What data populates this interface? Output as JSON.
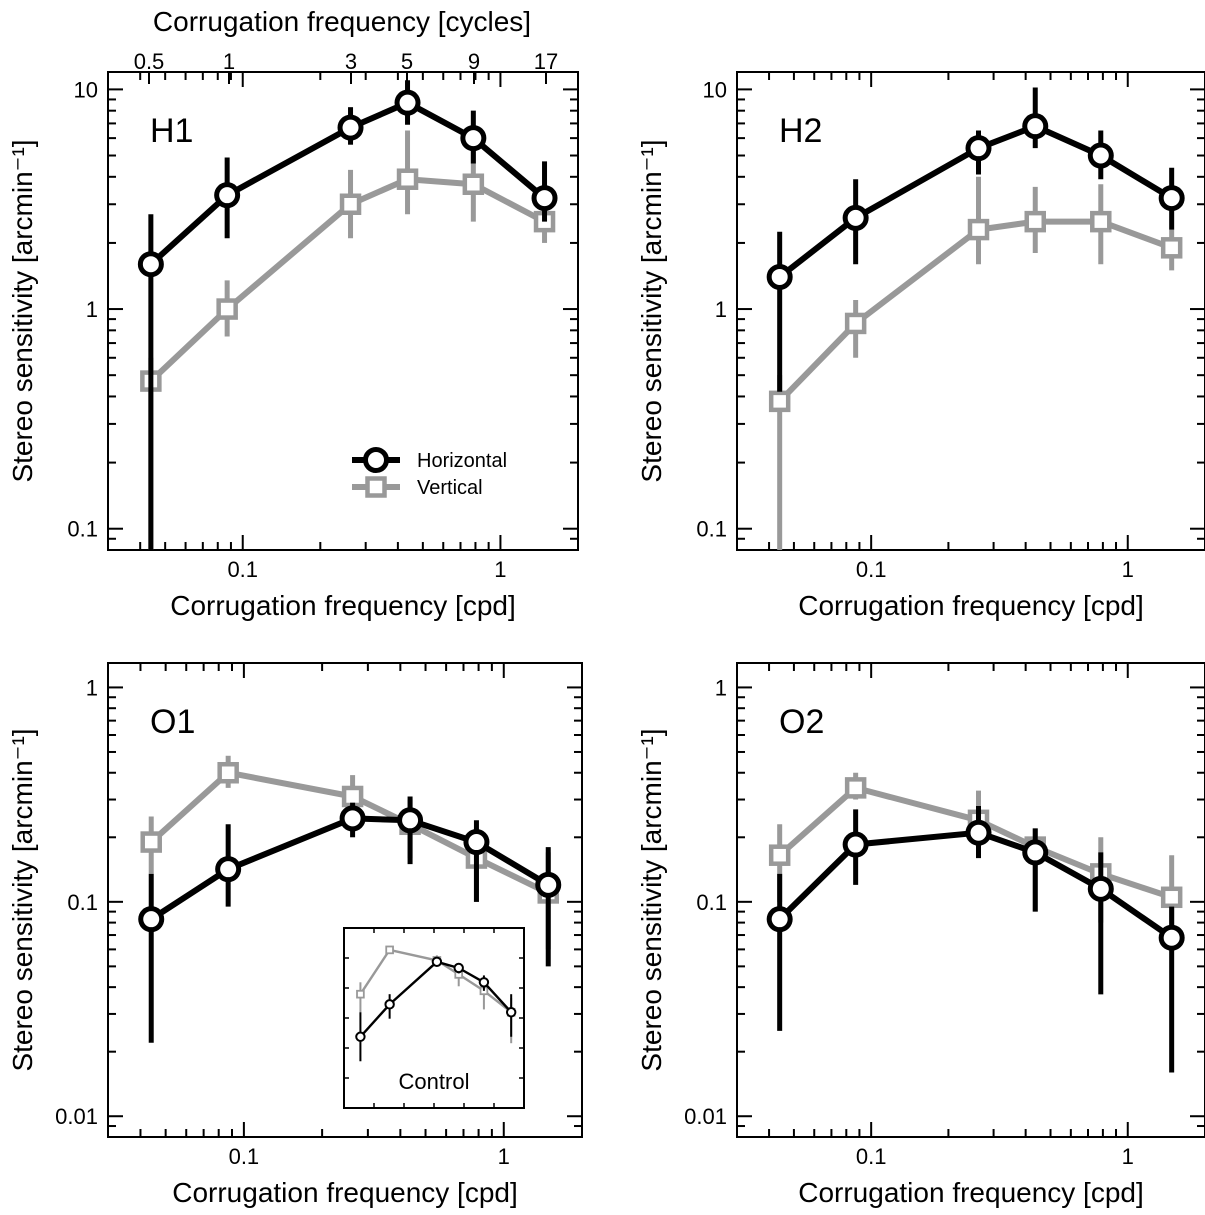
{
  "figure": {
    "top_axis_title": "Corrugation frequency [cycles]",
    "top_tick_labels": [
      "0.5",
      "1",
      "3",
      "5",
      "9",
      "17"
    ]
  },
  "legend": {
    "horizontal": "Horizontal",
    "vertical": "Vertical"
  },
  "inset": {
    "label": "Control"
  },
  "colors": {
    "horizontal": "#000000",
    "vertical": "#999999"
  },
  "chart_data": [
    {
      "type": "line",
      "panel": "H1",
      "xlabel": "Corrugation frequency [cpd]",
      "ylabel": "Stereo sensitivity [arcmin⁻¹]",
      "x_scale": "log",
      "y_scale": "log",
      "xlim": [
        0.03,
        2.0
      ],
      "ylim": [
        0.08,
        12
      ],
      "x_ticks": [
        {
          "v": 0.1,
          "t": "0.1"
        },
        {
          "v": 1,
          "t": "1"
        }
      ],
      "y_ticks": [
        {
          "v": 0.1,
          "t": "0.1"
        },
        {
          "v": 1,
          "t": "1"
        },
        {
          "v": 10,
          "t": "10"
        }
      ],
      "series": [
        {
          "name": "Horizontal",
          "x": [
            0.044,
            0.087,
            0.262,
            0.436,
            0.785,
            1.483
          ],
          "y": [
            1.6,
            3.3,
            6.7,
            8.7,
            6.0,
            3.2
          ],
          "err_low": [
            0.08,
            2.1,
            5.6,
            6.9,
            4.6,
            2.5
          ],
          "err_high": [
            2.7,
            4.9,
            8.3,
            11.0,
            8.0,
            4.7
          ]
        },
        {
          "name": "Vertical",
          "x": [
            0.044,
            0.087,
            0.262,
            0.436,
            0.785,
            1.483
          ],
          "y": [
            0.47,
            1.0,
            3.0,
            3.9,
            3.7,
            2.5
          ],
          "err_low": [
            0.08,
            0.75,
            2.1,
            2.7,
            2.5,
            2.0
          ],
          "err_high": [
            0.6,
            1.35,
            4.3,
            6.5,
            5.3,
            3.0
          ]
        }
      ]
    },
    {
      "type": "line",
      "panel": "H2",
      "xlabel": "Corrugation frequency [cpd]",
      "ylabel": "Stereo sensitivity [arcmin⁻¹]",
      "x_scale": "log",
      "y_scale": "log",
      "xlim": [
        0.03,
        2.0
      ],
      "ylim": [
        0.08,
        12
      ],
      "x_ticks": [
        {
          "v": 0.1,
          "t": "0.1"
        },
        {
          "v": 1,
          "t": "1"
        }
      ],
      "y_ticks": [
        {
          "v": 0.1,
          "t": "0.1"
        },
        {
          "v": 1,
          "t": "1"
        },
        {
          "v": 10,
          "t": "10"
        }
      ],
      "series": [
        {
          "name": "Horizontal",
          "x": [
            0.044,
            0.087,
            0.262,
            0.436,
            0.785,
            1.483
          ],
          "y": [
            1.4,
            2.6,
            5.4,
            6.8,
            5.0,
            3.2
          ],
          "err_low": [
            0.42,
            1.6,
            4.1,
            5.4,
            3.9,
            2.3
          ],
          "err_high": [
            2.25,
            3.9,
            6.5,
            10.2,
            6.5,
            4.4
          ]
        },
        {
          "name": "Vertical",
          "x": [
            0.044,
            0.087,
            0.262,
            0.436,
            0.785,
            1.483
          ],
          "y": [
            0.38,
            0.86,
            2.3,
            2.5,
            2.5,
            1.9
          ],
          "err_low": [
            0.08,
            0.6,
            1.6,
            1.8,
            1.6,
            1.5
          ],
          "err_high": [
            0.5,
            1.1,
            4.0,
            3.6,
            3.7,
            2.3
          ]
        }
      ]
    },
    {
      "type": "line",
      "panel": "O1",
      "xlabel": "Corrugation frequency [cpd]",
      "ylabel": "Stereo sensitivity [arcmin⁻¹]",
      "x_scale": "log",
      "y_scale": "log",
      "xlim": [
        0.03,
        2.0
      ],
      "ylim": [
        0.008,
        1.3
      ],
      "x_ticks": [
        {
          "v": 0.1,
          "t": "0.1"
        },
        {
          "v": 1,
          "t": "1"
        }
      ],
      "y_ticks": [
        {
          "v": 0.01,
          "t": "0.01"
        },
        {
          "v": 0.1,
          "t": "0.1"
        },
        {
          "v": 1,
          "t": "1"
        }
      ],
      "series": [
        {
          "name": "Horizontal",
          "x": [
            0.044,
            0.087,
            0.262,
            0.436,
            0.785,
            1.483
          ],
          "y": [
            0.083,
            0.142,
            0.245,
            0.24,
            0.19,
            0.12
          ],
          "err_low": [
            0.022,
            0.095,
            0.2,
            0.15,
            0.1,
            0.05
          ],
          "err_high": [
            0.135,
            0.23,
            0.29,
            0.31,
            0.24,
            0.18
          ]
        },
        {
          "name": "Vertical",
          "x": [
            0.044,
            0.087,
            0.262,
            0.436,
            0.785,
            1.483
          ],
          "y": [
            0.19,
            0.4,
            0.31,
            0.23,
            0.16,
            0.11
          ],
          "err_low": [
            0.135,
            0.34,
            0.26,
            0.16,
            0.1,
            0.06
          ],
          "err_high": [
            0.25,
            0.48,
            0.39,
            0.3,
            0.22,
            0.17
          ]
        }
      ]
    },
    {
      "type": "line",
      "panel": "O2",
      "xlabel": "Corrugation frequency [cpd]",
      "ylabel": "Stereo sensitivity [arcmin⁻¹]",
      "x_scale": "log",
      "y_scale": "log",
      "xlim": [
        0.03,
        2.0
      ],
      "ylim": [
        0.008,
        1.3
      ],
      "x_ticks": [
        {
          "v": 0.1,
          "t": "0.1"
        },
        {
          "v": 1,
          "t": "1"
        }
      ],
      "y_ticks": [
        {
          "v": 0.01,
          "t": "0.01"
        },
        {
          "v": 0.1,
          "t": "0.1"
        },
        {
          "v": 1,
          "t": "1"
        }
      ],
      "series": [
        {
          "name": "Horizontal",
          "x": [
            0.044,
            0.087,
            0.262,
            0.436,
            0.785,
            1.483
          ],
          "y": [
            0.083,
            0.185,
            0.21,
            0.17,
            0.115,
            0.068
          ],
          "err_low": [
            0.025,
            0.12,
            0.16,
            0.09,
            0.037,
            0.016
          ],
          "err_high": [
            0.135,
            0.27,
            0.28,
            0.22,
            0.17,
            0.095
          ]
        },
        {
          "name": "Vertical",
          "x": [
            0.044,
            0.087,
            0.262,
            0.436,
            0.785,
            1.483
          ],
          "y": [
            0.165,
            0.34,
            0.24,
            0.18,
            0.135,
            0.105
          ],
          "err_low": [
            0.1,
            0.3,
            0.2,
            0.09,
            0.08,
            0.06
          ],
          "err_high": [
            0.23,
            0.4,
            0.33,
            0.22,
            0.2,
            0.165
          ]
        }
      ]
    },
    {
      "type": "line",
      "panel": "Control",
      "x_scale": "log",
      "y_scale": "log",
      "xlim": [
        0.03,
        2.0
      ],
      "ylim": [
        0.008,
        1.3
      ],
      "series": [
        {
          "name": "Horizontal",
          "x": [
            0.044,
            0.087,
            0.262,
            0.436,
            0.785,
            1.483
          ],
          "y": [
            0.06,
            0.15,
            0.5,
            0.42,
            0.28,
            0.12
          ],
          "err_low": [
            0.03,
            0.1,
            0.44,
            0.36,
            0.22,
            0.06
          ],
          "err_high": [
            0.12,
            0.2,
            0.56,
            0.48,
            0.34,
            0.2
          ]
        },
        {
          "name": "Vertical",
          "x": [
            0.044,
            0.087,
            0.262,
            0.436,
            0.785,
            1.483
          ],
          "y": [
            0.2,
            0.7,
            0.52,
            0.35,
            0.22,
            0.12
          ],
          "err_low": [
            0.12,
            0.65,
            0.45,
            0.25,
            0.13,
            0.05
          ],
          "err_high": [
            0.28,
            0.75,
            0.6,
            0.42,
            0.3,
            0.18
          ]
        }
      ]
    }
  ]
}
